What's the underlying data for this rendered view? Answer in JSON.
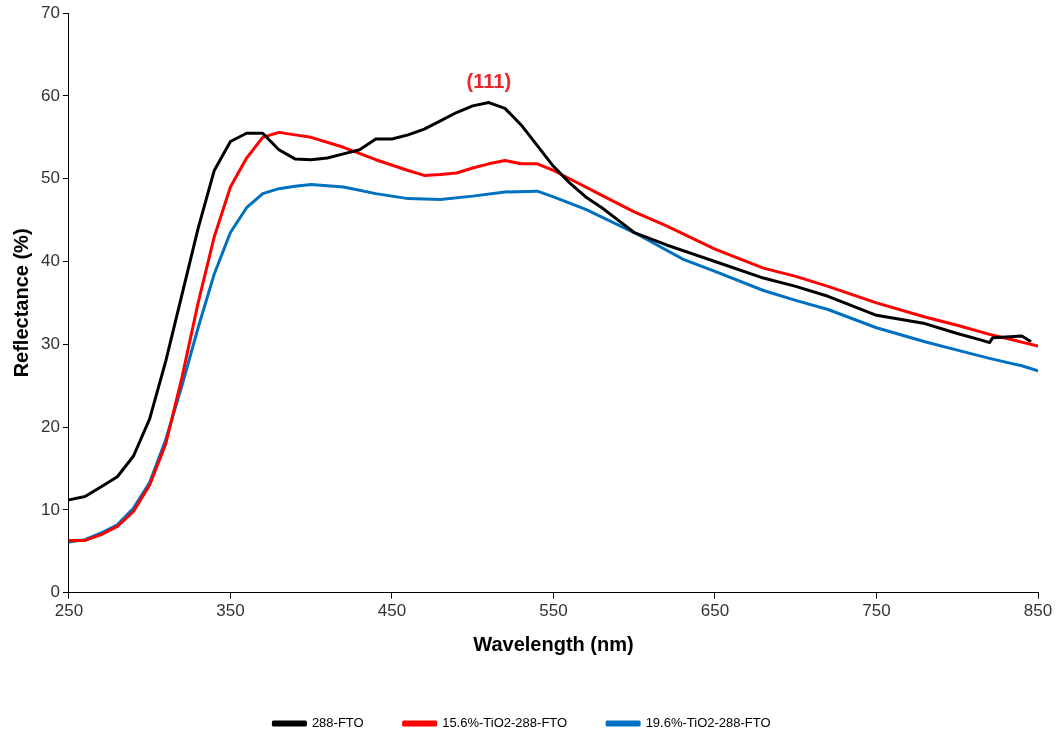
{
  "chart_data": {
    "type": "line",
    "xlabel": "Wavelength (nm)",
    "ylabel": "Reflectance (%)",
    "xlim": [
      250,
      850
    ],
    "xticks": [
      250,
      350,
      450,
      550,
      650,
      750,
      850
    ],
    "ylim": [
      0,
      70
    ],
    "yticks": [
      0,
      10,
      20,
      30,
      40,
      50,
      60,
      70
    ],
    "grid": false,
    "legend": "bottom",
    "marker": "none",
    "line_style": "solid",
    "annotations": [
      {
        "text": "(111)",
        "x": 510,
        "y": 59.2
      }
    ],
    "series": [
      {
        "name": "288-FTO",
        "color": "#000000",
        "x": [
          250,
          260,
          270,
          280,
          290,
          300,
          310,
          320,
          330,
          340,
          350,
          360,
          370,
          380,
          390,
          400,
          410,
          420,
          430,
          440,
          450,
          460,
          470,
          480,
          490,
          500,
          510,
          520,
          530,
          540,
          550,
          560,
          570,
          580,
          590,
          600,
          620,
          650,
          680,
          700,
          720,
          750,
          780,
          800,
          815,
          820,
          822,
          840,
          845
        ],
        "values": [
          11.2,
          11.6,
          12.8,
          14.0,
          16.5,
          21,
          28,
          36,
          44,
          51,
          54.5,
          55.5,
          55.5,
          53.5,
          52.4,
          52.3,
          52.5,
          53,
          53.5,
          54.8,
          54.8,
          55.3,
          56,
          57,
          58,
          58.8,
          59.2,
          58.5,
          56.5,
          54,
          51.5,
          49.5,
          47.8,
          46.5,
          45,
          43.5,
          42,
          40,
          38,
          37,
          35.8,
          33.5,
          32.5,
          31.3,
          30.5,
          30.2,
          30.8,
          31.0,
          30.4
        ]
      },
      {
        "name": "15.6%-TiO2-288-FTO",
        "color": "#ff0000",
        "x": [
          250,
          260,
          270,
          280,
          290,
          300,
          310,
          320,
          330,
          340,
          350,
          360,
          370,
          380,
          390,
          400,
          420,
          440,
          460,
          470,
          480,
          490,
          500,
          510,
          520,
          530,
          540,
          550,
          560,
          580,
          600,
          620,
          650,
          680,
          700,
          720,
          750,
          780,
          800,
          820,
          850
        ],
        "values": [
          6.3,
          6.3,
          7,
          8,
          9.8,
          13,
          18,
          26,
          35,
          43,
          49,
          52.5,
          55,
          55.6,
          55.3,
          55,
          53.8,
          52.3,
          51,
          50.4,
          50.5,
          50.7,
          51.3,
          51.8,
          52.2,
          51.8,
          51.8,
          51,
          50,
          48,
          46,
          44.3,
          41.5,
          39.2,
          38.2,
          37,
          35,
          33.3,
          32.3,
          31.2,
          29.8
        ]
      },
      {
        "name": "19.6%-TiO2-288-FTO",
        "color": "#0070c0",
        "x": [
          250,
          260,
          270,
          280,
          290,
          300,
          310,
          320,
          330,
          340,
          350,
          360,
          370,
          380,
          390,
          400,
          420,
          440,
          460,
          480,
          500,
          520,
          540,
          550,
          570,
          600,
          630,
          650,
          680,
          700,
          720,
          750,
          780,
          800,
          820,
          840,
          850
        ],
        "values": [
          6.1,
          6.4,
          7.2,
          8.2,
          10.2,
          13.3,
          18.5,
          25,
          32,
          38.5,
          43.5,
          46.5,
          48.2,
          48.8,
          49.1,
          49.3,
          49,
          48.2,
          47.6,
          47.5,
          47.9,
          48.4,
          48.5,
          47.8,
          46.3,
          43.5,
          40.3,
          38.8,
          36.5,
          35.3,
          34.2,
          32,
          30.3,
          29.3,
          28.3,
          27.4,
          26.8
        ]
      }
    ]
  }
}
